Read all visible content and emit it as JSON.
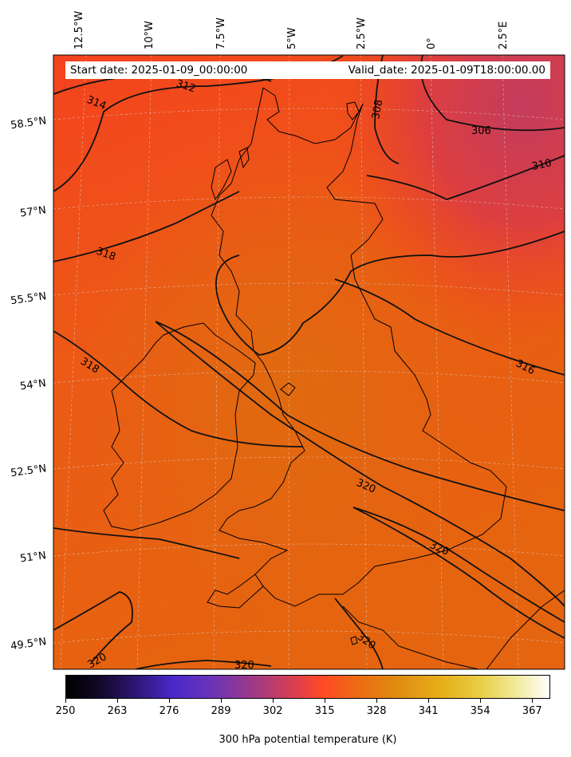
{
  "header": {
    "start_date": "Start date: 2025-01-09_00:00:00",
    "valid_date": "Valid_date: 2025-01-09T18:00:00.00"
  },
  "map": {
    "longitude_labels": [
      "12.5°W",
      "10°W",
      "7.5°W",
      "5°W",
      "2.5°W",
      "0°",
      "2.5°E"
    ],
    "latitude_labels": [
      "58.5°N",
      "57°N",
      "55.5°N",
      "54°N",
      "52.5°N",
      "51°N",
      "49.5°N"
    ],
    "contour_labels": [
      "312",
      "314",
      "308",
      "306",
      "310",
      "318",
      "318",
      "316",
      "320",
      "320",
      "320",
      "320",
      "320"
    ],
    "field_colors": {
      "warm": "#e4660f",
      "mid": "#f2441f",
      "cool": "#ca3c52"
    }
  },
  "colorbar": {
    "ticks": [
      "250",
      "263",
      "276",
      "289",
      "302",
      "315",
      "328",
      "341",
      "354",
      "367"
    ],
    "label": "300 hPa potential temperature (K)"
  }
}
